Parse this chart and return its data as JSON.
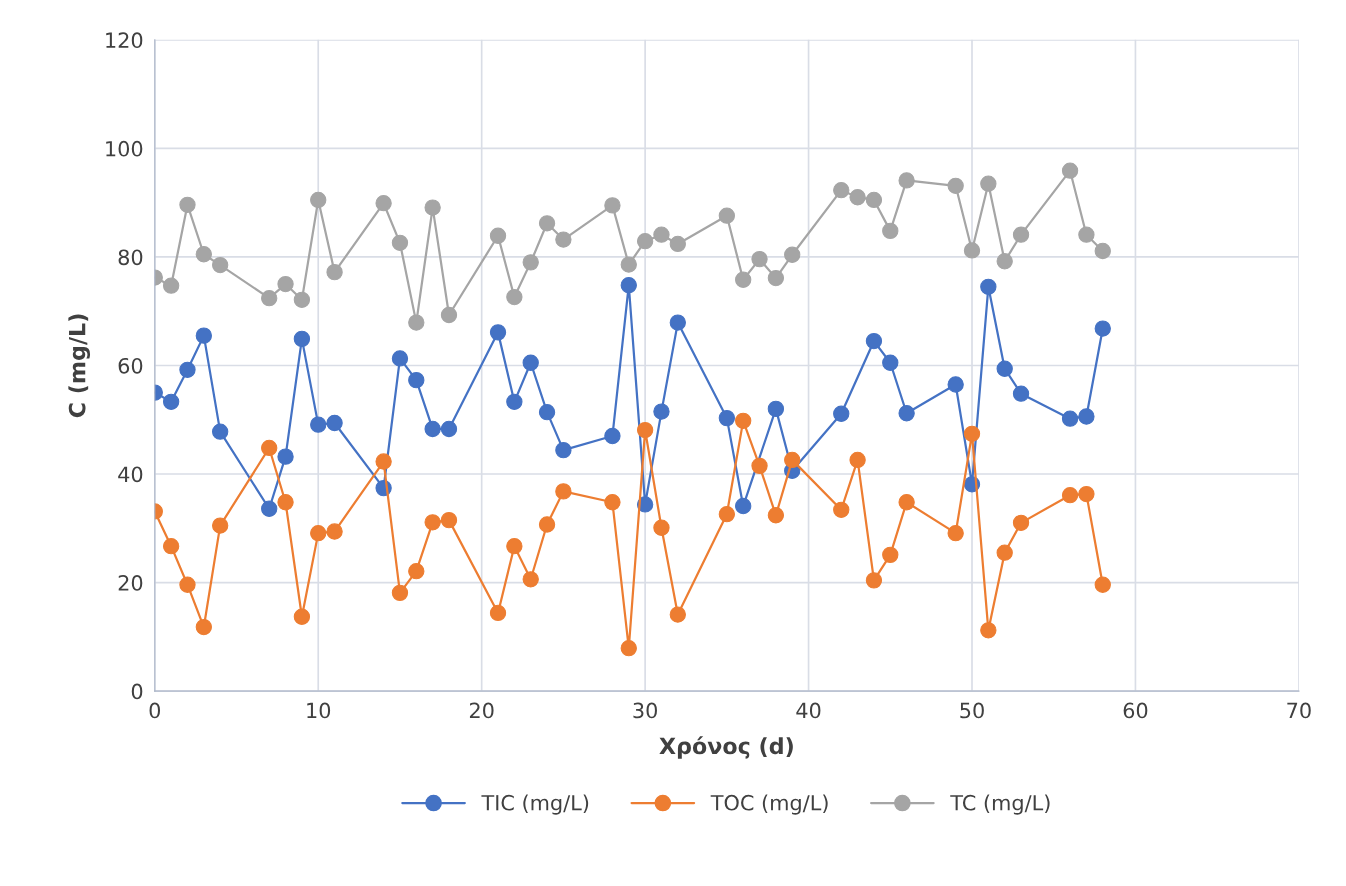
{
  "chart_data": {
    "type": "line",
    "xlabel": "Χρόνος (d)",
    "ylabel": "C (mg/L)",
    "x": [
      0,
      1,
      2,
      3,
      4,
      7,
      8,
      9,
      10,
      11,
      14,
      15,
      16,
      17,
      18,
      21,
      22,
      23,
      24,
      25,
      28,
      29,
      30,
      31,
      32,
      35,
      36,
      37,
      38,
      39,
      42,
      43,
      44,
      45,
      46,
      49,
      50,
      51,
      52,
      53,
      56,
      57,
      58
    ],
    "series": [
      {
        "name": "TIC (mg/L)",
        "color": "#4472c4",
        "values": [
          55.0,
          53.3,
          59.2,
          65.5,
          47.8,
          33.6,
          43.2,
          64.9,
          49.1,
          49.4,
          37.4,
          61.3,
          57.3,
          48.3,
          48.3,
          66.1,
          53.3,
          60.5,
          51.4,
          44.4,
          47.0,
          74.8,
          34.4,
          51.5,
          67.9,
          50.3,
          34.1,
          null,
          52.0,
          40.6,
          51.1,
          null,
          64.5,
          60.5,
          51.2,
          56.5,
          38.1,
          74.5,
          59.4,
          54.8,
          50.2,
          50.6,
          66.8
        ]
      },
      {
        "name": "TOC (mg/L)",
        "color": "#ed7d31",
        "values": [
          33.1,
          26.7,
          19.6,
          11.8,
          30.5,
          44.8,
          34.8,
          13.7,
          29.1,
          29.4,
          42.3,
          18.1,
          22.1,
          31.1,
          31.5,
          14.4,
          26.7,
          20.6,
          30.7,
          36.8,
          34.8,
          7.9,
          48.1,
          30.1,
          14.1,
          32.6,
          49.8,
          41.5,
          32.4,
          42.6,
          33.4,
          42.6,
          20.4,
          25.1,
          34.8,
          29.1,
          47.4,
          11.2,
          25.5,
          31.0,
          36.1,
          36.3,
          19.6
        ]
      },
      {
        "name": "TC (mg/L)",
        "color": "#a5a5a5",
        "values": [
          76.2,
          74.7,
          89.6,
          80.5,
          78.5,
          72.4,
          75.0,
          72.1,
          90.5,
          77.2,
          89.9,
          82.6,
          67.9,
          89.1,
          69.3,
          83.9,
          72.6,
          79.0,
          86.2,
          83.2,
          89.5,
          78.6,
          82.9,
          84.1,
          82.4,
          87.6,
          75.8,
          79.6,
          76.1,
          80.4,
          92.3,
          91.0,
          90.5,
          84.8,
          94.1,
          93.1,
          81.2,
          93.5,
          79.2,
          84.1,
          95.9,
          84.1,
          81.1
        ]
      }
    ],
    "xlim": [
      0,
      70
    ],
    "xticks": [
      0,
      10,
      20,
      30,
      40,
      50,
      60,
      70
    ],
    "ylim": [
      0,
      120
    ],
    "yticks": [
      0,
      20,
      40,
      60,
      80,
      100,
      120
    ],
    "grid": true,
    "legend": "bottom",
    "marker": "circle",
    "line_style": "solid"
  }
}
